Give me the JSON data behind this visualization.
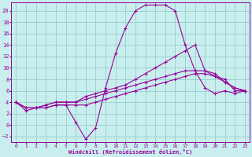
{
  "xlabel": "Windchill (Refroidissement éolien,°C)",
  "bg_color": "#c8eeee",
  "line_color": "#990099",
  "grid_color": "#99cccc",
  "xlim": [
    -0.5,
    23.5
  ],
  "ylim": [
    -3,
    21.5
  ],
  "yticks": [
    -2,
    0,
    2,
    4,
    6,
    8,
    10,
    12,
    14,
    16,
    18,
    20
  ],
  "xticks": [
    0,
    1,
    2,
    3,
    4,
    5,
    6,
    7,
    8,
    9,
    10,
    11,
    12,
    13,
    14,
    15,
    16,
    17,
    18,
    19,
    20,
    21,
    22,
    23
  ],
  "series": [
    {
      "x": [
        0,
        1,
        2,
        3,
        4,
        5,
        6,
        7,
        8,
        9,
        10,
        11,
        12,
        13,
        14,
        15,
        16,
        17,
        18,
        19,
        20,
        21,
        22,
        23
      ],
      "y": [
        4,
        3,
        3,
        3,
        3.5,
        3.5,
        3.5,
        3.5,
        4,
        4.5,
        5,
        5.5,
        6,
        6.5,
        7,
        7.5,
        8,
        8.5,
        9,
        9,
        8.5,
        8,
        6,
        6
      ]
    },
    {
      "x": [
        0,
        1,
        2,
        3,
        4,
        5,
        6,
        7,
        8,
        9,
        10,
        11,
        12,
        13,
        14,
        15,
        16,
        17,
        18,
        19,
        20,
        21,
        22,
        23
      ],
      "y": [
        4,
        3,
        3,
        3.5,
        4,
        4,
        4,
        4.5,
        5,
        5.5,
        6,
        6.5,
        7,
        7.5,
        8,
        8.5,
        9,
        9.5,
        9.5,
        9.5,
        9,
        7.5,
        6.5,
        6
      ]
    },
    {
      "x": [
        0,
        1,
        2,
        3,
        4,
        5,
        6,
        7,
        8,
        9,
        10,
        11,
        12,
        13,
        14,
        15,
        16,
        17,
        18,
        19,
        20,
        21,
        22,
        23
      ],
      "y": [
        4,
        3,
        3,
        3.5,
        4,
        4,
        4,
        5,
        5.5,
        6,
        6.5,
        7,
        8,
        9,
        10,
        11,
        12,
        13,
        14,
        9.5,
        8.5,
        7.5,
        6.5,
        6
      ]
    },
    {
      "x": [
        0,
        1,
        2,
        3,
        4,
        5,
        6,
        7,
        8,
        9,
        10,
        11,
        12,
        13,
        14,
        15,
        16,
        17,
        18,
        19,
        20,
        21,
        22,
        23
      ],
      "y": [
        4,
        2.5,
        3,
        3,
        3.5,
        3.5,
        0.5,
        -2.5,
        -0.5,
        6.5,
        12.5,
        17,
        20,
        21,
        21,
        21,
        20,
        14,
        9.5,
        6.5,
        5.5,
        6,
        5.5,
        6
      ]
    }
  ]
}
